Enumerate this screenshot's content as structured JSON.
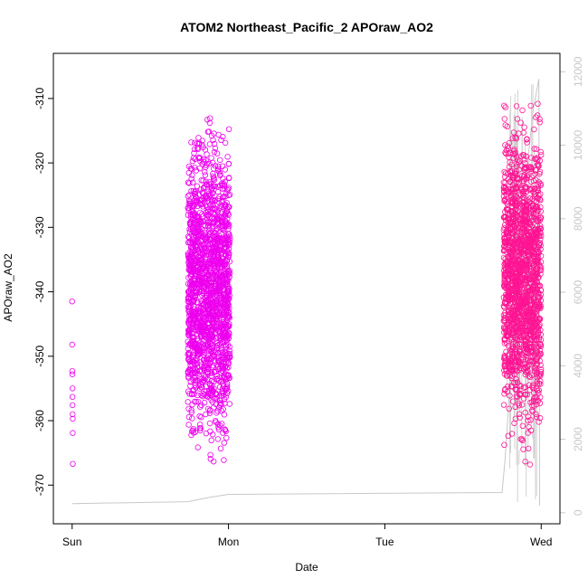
{
  "chart_data": {
    "type": "scatter",
    "title": "ATOM2 Northeast_Pacific_2 APOraw_AO2",
    "xlabel": "Date",
    "ylabel": "APOraw_AO2",
    "x_ticks": [
      "Sun",
      "Mon",
      "Tue",
      "Wed"
    ],
    "x_tick_positions_days": [
      0,
      1,
      2,
      3
    ],
    "xlim_days": [
      -0.12,
      3.12
    ],
    "ylim": [
      -376,
      -303
    ],
    "y_ticks": [
      -370,
      -360,
      -350,
      -340,
      -330,
      -320,
      -310
    ],
    "y2lim": [
      -300,
      12500
    ],
    "y2_ticks": [
      0,
      2000,
      4000,
      6000,
      8000,
      10000,
      12000
    ],
    "grid": false,
    "series": [
      {
        "color": "#ee00ee",
        "marker": "open-circle",
        "clusters": [
          {
            "x_start": 0.0,
            "x_end": 0.005,
            "y_points": [
              -341.5,
              -348.2,
              -352.3,
              -352.8,
              -355.0,
              -356.3,
              -357.6,
              -359.0,
              -359.7,
              -361.9,
              -366.7
            ]
          },
          {
            "x_start": 0.74,
            "x_end": 1.01,
            "y_min": -375,
            "y_max": -306.5,
            "approx_points": 1800
          }
        ]
      },
      {
        "color": "#ff1493",
        "marker": "open-circle",
        "clusters": [
          {
            "x_start": 2.76,
            "x_end": 3.0,
            "y_min": -373.5,
            "y_max": -304.5,
            "approx_points": 1600
          }
        ]
      },
      {
        "color": "#c8c8c8",
        "marker": "line",
        "axis": "right",
        "points": [
          [
            0.0,
            250
          ],
          [
            0.01,
            250
          ],
          [
            0.74,
            300
          ],
          [
            0.88,
            420
          ],
          [
            1.0,
            500
          ],
          [
            2.75,
            550
          ],
          [
            2.77,
            1500
          ],
          [
            2.8,
            3500
          ],
          [
            2.85,
            6000
          ],
          [
            2.9,
            9000
          ],
          [
            2.95,
            11000
          ],
          [
            2.985,
            11800
          ],
          [
            2.99,
            200
          ]
        ]
      }
    ]
  }
}
